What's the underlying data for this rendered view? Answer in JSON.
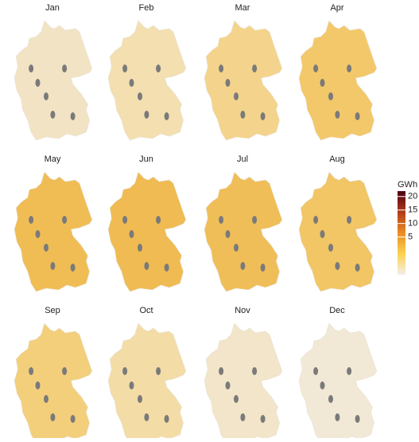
{
  "panels": [
    {
      "label": "Jan",
      "color": "#f2e3c4"
    },
    {
      "label": "Feb",
      "color": "#f3dfb0"
    },
    {
      "label": "Mar",
      "color": "#f4d48c"
    },
    {
      "label": "Apr",
      "color": "#f3c86a"
    },
    {
      "label": "May",
      "color": "#f0bd55"
    },
    {
      "label": "Jun",
      "color": "#efbb52"
    },
    {
      "label": "Jul",
      "color": "#f0be58"
    },
    {
      "label": "Aug",
      "color": "#f2c565"
    },
    {
      "label": "Sep",
      "color": "#f3cf7c"
    },
    {
      "label": "Oct",
      "color": "#f3dca6"
    },
    {
      "label": "Nov",
      "color": "#f2e5c9"
    },
    {
      "label": "Dec",
      "color": "#f1e8d6"
    }
  ],
  "legend": {
    "title": "GWh",
    "ticks": [
      5,
      10,
      15,
      20
    ],
    "lim": [
      -9,
      22
    ],
    "colors": [
      "#f3efe8",
      "#fbd24e",
      "#eb8e22",
      "#b23a1a",
      "#4b0012"
    ]
  }
}
